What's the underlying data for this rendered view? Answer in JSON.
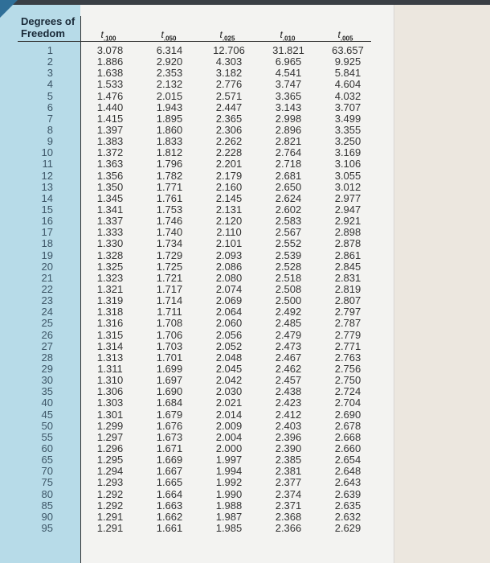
{
  "header": {
    "df_label": "Degrees of Freedom",
    "columns": [
      {
        "symbol": "t",
        "subscript": ".100"
      },
      {
        "symbol": "t",
        "subscript": ".050"
      },
      {
        "symbol": "t",
        "subscript": ".025"
      },
      {
        "symbol": "t",
        "subscript": ".010"
      },
      {
        "symbol": "t",
        "subscript": ".005"
      }
    ]
  },
  "rows": [
    [
      "1",
      "3.078",
      "6.314",
      "12.706",
      "31.821",
      "63.657"
    ],
    [
      "2",
      "1.886",
      "2.920",
      "4.303",
      "6.965",
      "9.925"
    ],
    [
      "3",
      "1.638",
      "2.353",
      "3.182",
      "4.541",
      "5.841"
    ],
    [
      "4",
      "1.533",
      "2.132",
      "2.776",
      "3.747",
      "4.604"
    ],
    [
      "5",
      "1.476",
      "2.015",
      "2.571",
      "3.365",
      "4.032"
    ],
    [
      "6",
      "1.440",
      "1.943",
      "2.447",
      "3.143",
      "3.707"
    ],
    [
      "7",
      "1.415",
      "1.895",
      "2.365",
      "2.998",
      "3.499"
    ],
    [
      "8",
      "1.397",
      "1.860",
      "2.306",
      "2.896",
      "3.355"
    ],
    [
      "9",
      "1.383",
      "1.833",
      "2.262",
      "2.821",
      "3.250"
    ],
    [
      "10",
      "1.372",
      "1.812",
      "2.228",
      "2.764",
      "3.169"
    ],
    [
      "11",
      "1.363",
      "1.796",
      "2.201",
      "2.718",
      "3.106"
    ],
    [
      "12",
      "1.356",
      "1.782",
      "2.179",
      "2.681",
      "3.055"
    ],
    [
      "13",
      "1.350",
      "1.771",
      "2.160",
      "2.650",
      "3.012"
    ],
    [
      "14",
      "1.345",
      "1.761",
      "2.145",
      "2.624",
      "2.977"
    ],
    [
      "15",
      "1.341",
      "1.753",
      "2.131",
      "2.602",
      "2.947"
    ],
    [
      "16",
      "1.337",
      "1.746",
      "2.120",
      "2.583",
      "2.921"
    ],
    [
      "17",
      "1.333",
      "1.740",
      "2.110",
      "2.567",
      "2.898"
    ],
    [
      "18",
      "1.330",
      "1.734",
      "2.101",
      "2.552",
      "2.878"
    ],
    [
      "19",
      "1.328",
      "1.729",
      "2.093",
      "2.539",
      "2.861"
    ],
    [
      "20",
      "1.325",
      "1.725",
      "2.086",
      "2.528",
      "2.845"
    ],
    [
      "21",
      "1.323",
      "1.721",
      "2.080",
      "2.518",
      "2.831"
    ],
    [
      "22",
      "1.321",
      "1.717",
      "2.074",
      "2.508",
      "2.819"
    ],
    [
      "23",
      "1.319",
      "1.714",
      "2.069",
      "2.500",
      "2.807"
    ],
    [
      "24",
      "1.318",
      "1.711",
      "2.064",
      "2.492",
      "2.797"
    ],
    [
      "25",
      "1.316",
      "1.708",
      "2.060",
      "2.485",
      "2.787"
    ],
    [
      "26",
      "1.315",
      "1.706",
      "2.056",
      "2.479",
      "2.779"
    ],
    [
      "27",
      "1.314",
      "1.703",
      "2.052",
      "2.473",
      "2.771"
    ],
    [
      "28",
      "1.313",
      "1.701",
      "2.048",
      "2.467",
      "2.763"
    ],
    [
      "29",
      "1.311",
      "1.699",
      "2.045",
      "2.462",
      "2.756"
    ],
    [
      "30",
      "1.310",
      "1.697",
      "2.042",
      "2.457",
      "2.750"
    ],
    [
      "35",
      "1.306",
      "1.690",
      "2.030",
      "2.438",
      "2.724"
    ],
    [
      "40",
      "1.303",
      "1.684",
      "2.021",
      "2.423",
      "2.704"
    ],
    [
      "45",
      "1.301",
      "1.679",
      "2.014",
      "2.412",
      "2.690"
    ],
    [
      "50",
      "1.299",
      "1.676",
      "2.009",
      "2.403",
      "2.678"
    ],
    [
      "55",
      "1.297",
      "1.673",
      "2.004",
      "2.396",
      "2.668"
    ],
    [
      "60",
      "1.296",
      "1.671",
      "2.000",
      "2.390",
      "2.660"
    ],
    [
      "65",
      "1.295",
      "1.669",
      "1.997",
      "2.385",
      "2.654"
    ],
    [
      "70",
      "1.294",
      "1.667",
      "1.994",
      "2.381",
      "2.648"
    ],
    [
      "75",
      "1.293",
      "1.665",
      "1.992",
      "2.377",
      "2.643"
    ],
    [
      "80",
      "1.292",
      "1.664",
      "1.990",
      "2.374",
      "2.639"
    ],
    [
      "85",
      "1.292",
      "1.663",
      "1.988",
      "2.371",
      "2.635"
    ],
    [
      "90",
      "1.291",
      "1.662",
      "1.987",
      "2.368",
      "2.632"
    ],
    [
      "95",
      "1.291",
      "1.661",
      "1.985",
      "2.366",
      "2.629"
    ]
  ]
}
